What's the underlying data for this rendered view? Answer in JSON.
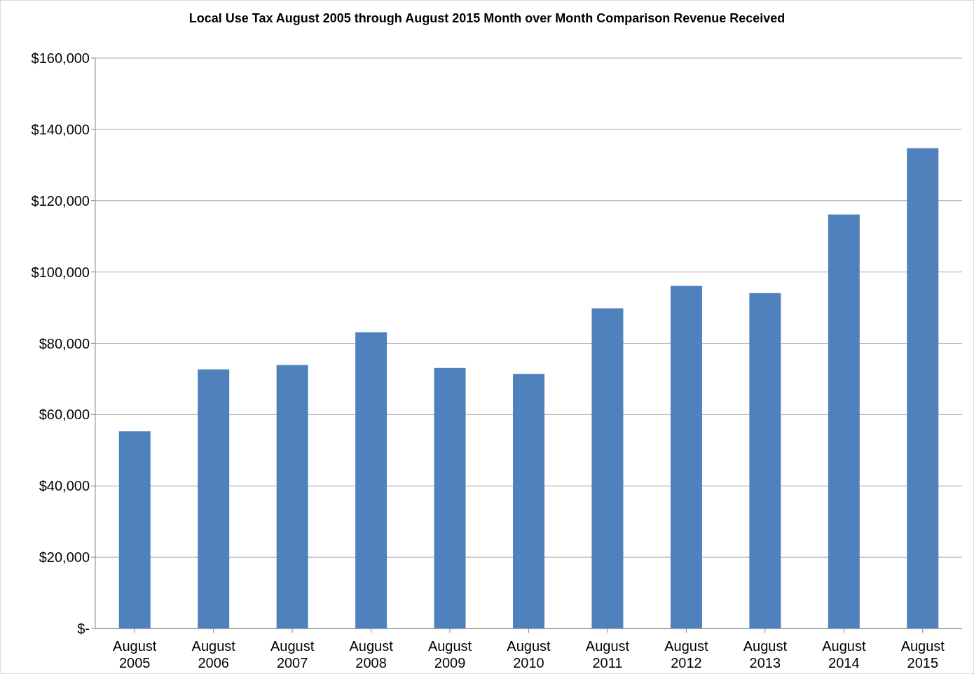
{
  "chart_data": {
    "type": "bar",
    "title": "Local Use Tax August 2005 through August 2015 Month over Month Comparison Revenue Received",
    "categories": [
      "August 2005",
      "August 2006",
      "August 2007",
      "August 2008",
      "August 2009",
      "August 2010",
      "August 2011",
      "August 2012",
      "August 2013",
      "August 2014",
      "August 2015"
    ],
    "values": [
      55300,
      72700,
      73900,
      83100,
      73100,
      71400,
      89800,
      96100,
      94100,
      116100,
      134700
    ],
    "color": "#4f81bd",
    "ylim": [
      0,
      160000
    ],
    "yticks": [
      {
        "value": 0,
        "label": "$-"
      },
      {
        "value": 20000,
        "label": "$20,000"
      },
      {
        "value": 40000,
        "label": "$40,000"
      },
      {
        "value": 60000,
        "label": "$60,000"
      },
      {
        "value": 80000,
        "label": "$80,000"
      },
      {
        "value": 100000,
        "label": "$100,000"
      },
      {
        "value": 120000,
        "label": "$120,000"
      },
      {
        "value": 140000,
        "label": "$140,000"
      },
      {
        "value": 160000,
        "label": "$160,000"
      }
    ],
    "grid": "y",
    "legend": false
  }
}
